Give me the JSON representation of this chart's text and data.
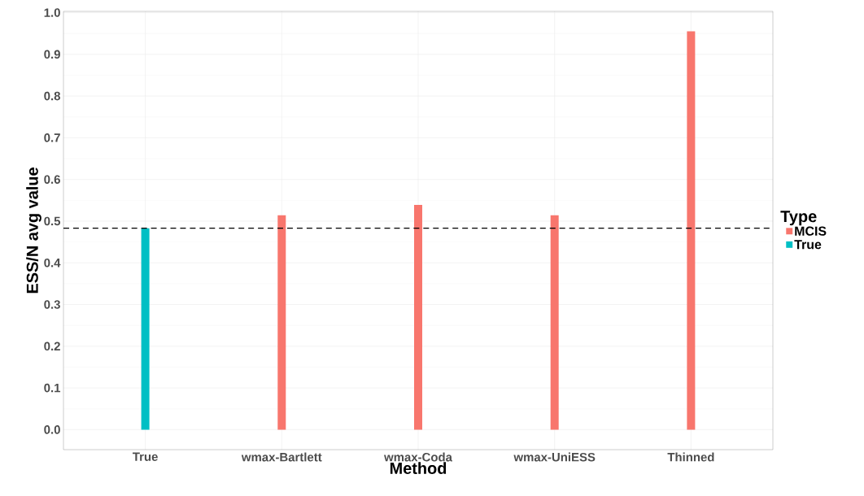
{
  "chart_data": {
    "type": "bar",
    "xlabel": "Method",
    "ylabel": "ESS/N avg value",
    "legend_title": "Type",
    "categories": [
      "True",
      "wmax-Bartlett",
      "wmax-Coda",
      "wmax-UniESS",
      "Thinned"
    ],
    "series": [
      {
        "name": "MCIS",
        "color": "#f8766d",
        "values": [
          null,
          0.514,
          0.539,
          0.514,
          0.955
        ]
      },
      {
        "name": "True",
        "color": "#00bfc4",
        "values": [
          0.483,
          null,
          null,
          null,
          null
        ]
      }
    ],
    "ylim": [
      -0.048,
      1.003
    ],
    "yticks": [
      {
        "value": 0,
        "label": "0.0"
      },
      0.1,
      0.2,
      0.3,
      0.4,
      0.5,
      0.6,
      0.7,
      0.8,
      0.9,
      {
        "value": 1,
        "label": "1.0"
      }
    ],
    "ref_lines": [
      {
        "axis": "y",
        "value": 0.483,
        "color": "#000000",
        "line_style": "dashed"
      }
    ],
    "grid": true,
    "legend": "right"
  }
}
